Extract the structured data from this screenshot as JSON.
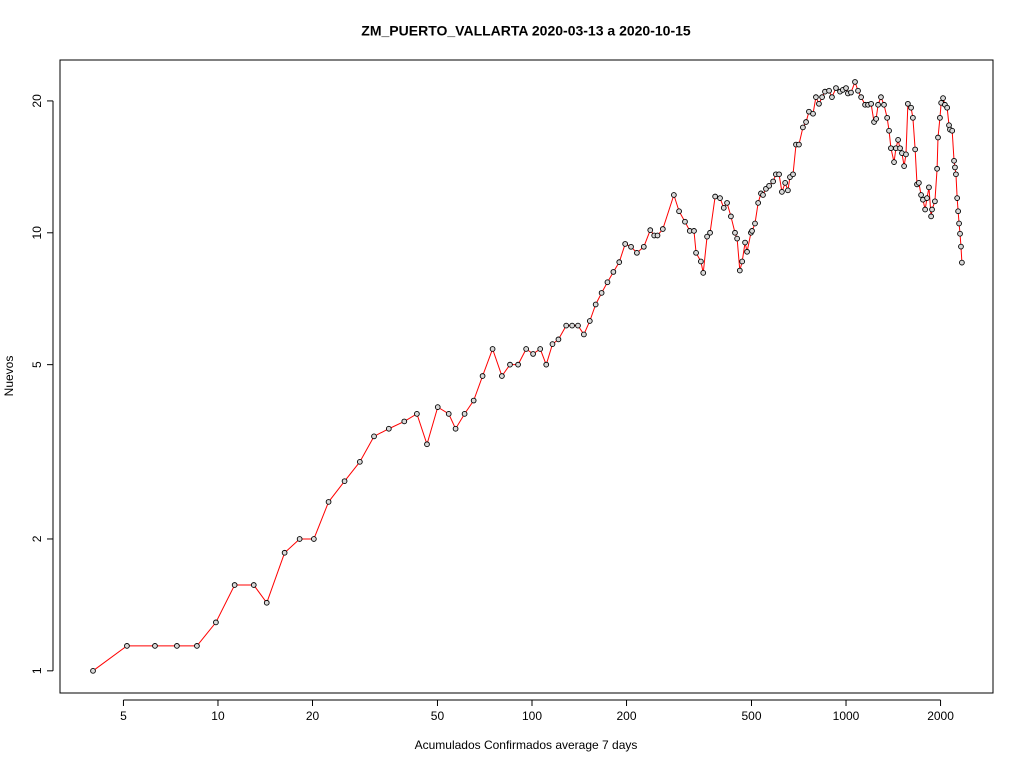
{
  "chart_data": {
    "type": "line",
    "title": "ZM_PUERTO_VALLARTA 2020-03-13 a 2020-10-15",
    "x_label": "Acumulados Confirmados average  7  days",
    "y_label": "Nuevos",
    "x_log": true,
    "y_log": true,
    "xlim": [
      3.14,
      2938
    ],
    "ylim": [
      0.89,
      24.8
    ],
    "xticks": [
      5,
      10,
      20,
      50,
      100,
      200,
      500,
      1000,
      2000
    ],
    "yticks": [
      1,
      2,
      5,
      10,
      20
    ],
    "line_color": "#ff0000",
    "marker_color": "#000000",
    "x": [
      4.0,
      5.13,
      6.3,
      7.4,
      8.57,
      9.85,
      11.3,
      13.0,
      14.3,
      16.3,
      18.2,
      20.2,
      22.5,
      25.3,
      28.3,
      31.4,
      35.0,
      39.2,
      43.0,
      46.3,
      50.1,
      54.3,
      57.1,
      61.0,
      65.2,
      69.6,
      74.9,
      80.2,
      85.1,
      90.3,
      95.8,
      100.8,
      106.2,
      111,
      116.2,
      121.4,
      128.5,
      134.2,
      140.1,
      146.3,
      152.8,
      159.5,
      166.6,
      173.9,
      181.6,
      189.6,
      198,
      206.7,
      215.8,
      227,
      238,
      245,
      251,
      261,
      283,
      294,
      307,
      318,
      328,
      333,
      345,
      351,
      361,
      369,
      383,
      397,
      408,
      418,
      430,
      443,
      450,
      459,
      467,
      477,
      484,
      498,
      502,
      513,
      525,
      536,
      544,
      556,
      569,
      586,
      598,
      612,
      625,
      640,
      653,
      663,
      678,
      693,
      708,
      729,
      746,
      762,
      785,
      802,
      820,
      839,
      857,
      883,
      902,
      929,
      957,
      977,
      1000,
      1014,
      1037,
      1068,
      1092,
      1117,
      1150,
      1175,
      1202,
      1228,
      1247,
      1265,
      1292,
      1321,
      1352,
      1371,
      1390,
      1422,
      1442,
      1465,
      1486,
      1507,
      1531,
      1552,
      1574,
      1611,
      1633,
      1660,
      1683,
      1706,
      1734,
      1758,
      1786,
      1811,
      1837,
      1866,
      1879,
      1919,
      1950,
      1963,
      1991,
      2009,
      2037,
      2065,
      2099,
      2128,
      2143,
      2178,
      2208,
      2223,
      2239,
      2259,
      2275,
      2291,
      2307,
      2323,
      2339
    ],
    "values": [
      1,
      1.14,
      1.14,
      1.14,
      1.14,
      1.29,
      1.57,
      1.57,
      1.43,
      1.86,
      2,
      2,
      2.43,
      2.71,
      3,
      3.43,
      3.57,
      3.71,
      3.86,
      3.29,
      4,
      3.86,
      3.57,
      3.86,
      4.14,
      4.71,
      5.43,
      4.71,
      5,
      5,
      5.43,
      5.29,
      5.43,
      5,
      5.57,
      5.71,
      6.14,
      6.14,
      6.14,
      5.86,
      6.29,
      6.86,
      7.29,
      7.71,
      8.14,
      8.57,
      9.43,
      9.29,
      9,
      9.29,
      10.14,
      9.86,
      9.86,
      10.2,
      12.2,
      11.2,
      10.6,
      10.1,
      10.1,
      9.0,
      8.6,
      8.1,
      9.8,
      10,
      12.1,
      12.0,
      11.4,
      11.7,
      10.9,
      10.0,
      9.7,
      8.2,
      8.6,
      9.5,
      9.05,
      10,
      10.1,
      10.5,
      11.7,
      12.3,
      12.2,
      12.6,
      12.8,
      13.1,
      13.6,
      13.6,
      12.4,
      13.0,
      12.5,
      13.4,
      13.6,
      15.9,
      15.9,
      17.4,
      17.9,
      18.9,
      18.7,
      20.4,
      19.7,
      20.4,
      21.0,
      21.1,
      20.4,
      21.4,
      21.0,
      21.2,
      21.4,
      20.8,
      20.9,
      22.1,
      21.1,
      20.4,
      19.6,
      19.6,
      19.7,
      17.9,
      18.2,
      19.6,
      20.4,
      19.6,
      18.3,
      17.1,
      15.6,
      14.5,
      15.6,
      16.3,
      15.6,
      15.2,
      14.2,
      15.1,
      19.7,
      19.3,
      18.3,
      15.5,
      12.9,
      13.0,
      12.2,
      11.9,
      11.3,
      12.0,
      12.7,
      10.9,
      11.3,
      11.8,
      14.0,
      16.5,
      18.3,
      19.8,
      20.3,
      19.6,
      19.3,
      17.6,
      17.2,
      17.1,
      14.6,
      14.1,
      13.6,
      12.0,
      11.2,
      10.5,
      9.95,
      9.3,
      8.55
    ]
  }
}
